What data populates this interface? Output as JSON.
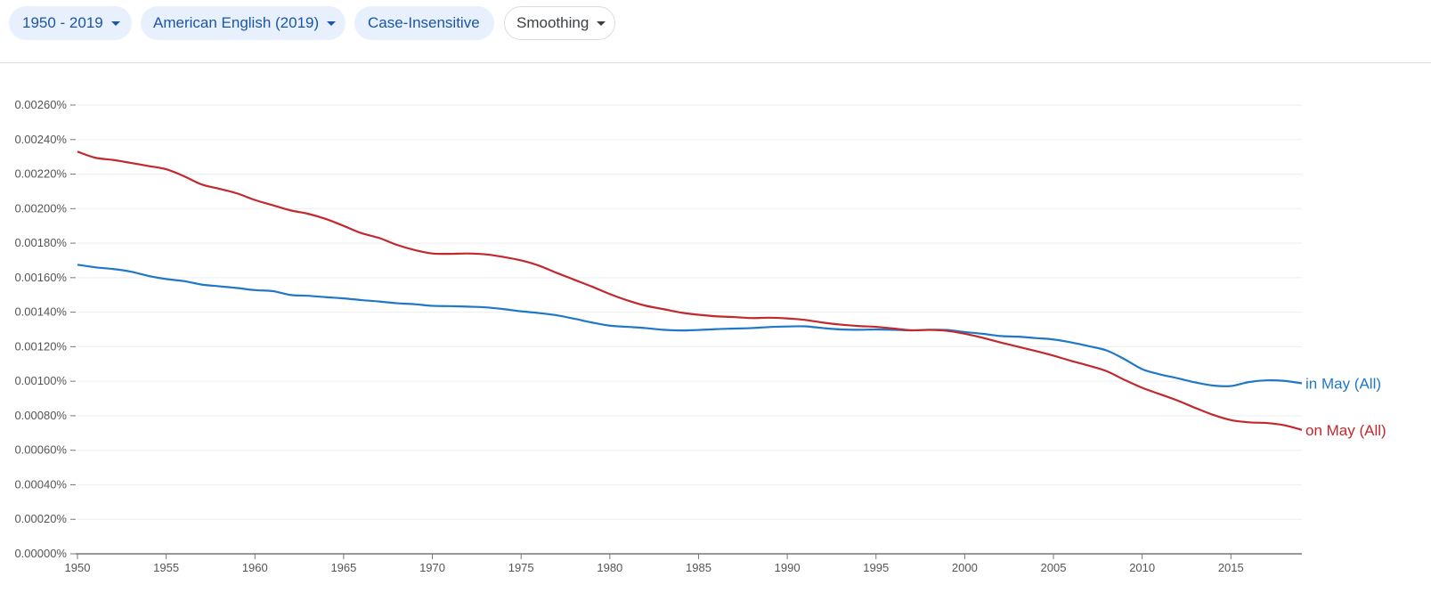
{
  "toolbar": {
    "range_label": "1950 - 2019",
    "corpus_label": "American English (2019)",
    "case_label": "Case-Insensitive",
    "smoothing_label": "Smoothing"
  },
  "colors": {
    "chip_fill": "#e8f0fe",
    "chip_text": "#1a56a5",
    "grid": "#eeeeee",
    "axis": "#777777"
  },
  "chart_data": {
    "type": "line",
    "title": "",
    "xlabel": "",
    "ylabel": "",
    "xlim": [
      1950,
      2019
    ],
    "ylim": [
      0,
      0.0026
    ],
    "grid": true,
    "legend": "inline labels at right end of each line",
    "x_ticks": [
      1950,
      1955,
      1960,
      1965,
      1970,
      1975,
      1980,
      1985,
      1990,
      1995,
      2000,
      2005,
      2010,
      2015
    ],
    "y_ticks": [
      "0.00000%",
      "0.00020%",
      "0.00040%",
      "0.00060%",
      "0.00080%",
      "0.00100%",
      "0.00120%",
      "0.00140%",
      "0.00160%",
      "0.00180%",
      "0.00200%",
      "0.00220%",
      "0.00240%",
      "0.00260%"
    ],
    "y_tick_values": [
      0,
      0.0002,
      0.0004,
      0.0006,
      0.0008,
      0.001,
      0.0012,
      0.0014,
      0.0016,
      0.0018,
      0.002,
      0.0022,
      0.0024,
      0.0026
    ],
    "series": [
      {
        "name": "in May (All)",
        "color": "#1f77c9",
        "points": [
          [
            1950,
            0.001675
          ],
          [
            1951,
            0.00166
          ],
          [
            1952,
            0.00165
          ],
          [
            1953,
            0.001635
          ],
          [
            1954,
            0.00161
          ],
          [
            1955,
            0.001592
          ],
          [
            1956,
            0.00158
          ],
          [
            1957,
            0.00156
          ],
          [
            1958,
            0.00155
          ],
          [
            1959,
            0.00154
          ],
          [
            1960,
            0.001528
          ],
          [
            1961,
            0.001522
          ],
          [
            1962,
            0.0015
          ],
          [
            1963,
            0.001495
          ],
          [
            1964,
            0.001487
          ],
          [
            1965,
            0.00148
          ],
          [
            1966,
            0.00147
          ],
          [
            1967,
            0.001462
          ],
          [
            1968,
            0.001452
          ],
          [
            1969,
            0.001446
          ],
          [
            1970,
            0.001437
          ],
          [
            1971,
            0.001435
          ],
          [
            1972,
            0.001432
          ],
          [
            1973,
            0.001428
          ],
          [
            1974,
            0.001418
          ],
          [
            1975,
            0.001405
          ],
          [
            1976,
            0.001395
          ],
          [
            1977,
            0.001382
          ],
          [
            1978,
            0.001362
          ],
          [
            1979,
            0.00134
          ],
          [
            1980,
            0.001322
          ],
          [
            1981,
            0.001315
          ],
          [
            1982,
            0.001308
          ],
          [
            1983,
            0.001298
          ],
          [
            1984,
            0.001294
          ],
          [
            1985,
            0.001297
          ],
          [
            1986,
            0.001302
          ],
          [
            1987,
            0.001305
          ],
          [
            1988,
            0.001308
          ],
          [
            1989,
            0.001314
          ],
          [
            1990,
            0.001317
          ],
          [
            1991,
            0.001318
          ],
          [
            1992,
            0.001308
          ],
          [
            1993,
            0.0013
          ],
          [
            1994,
            0.001298
          ],
          [
            1995,
            0.0013
          ],
          [
            1996,
            0.001298
          ],
          [
            1997,
            0.001295
          ],
          [
            1998,
            0.001298
          ],
          [
            1999,
            0.001297
          ],
          [
            2000,
            0.001285
          ],
          [
            2001,
            0.001275
          ],
          [
            2002,
            0.001262
          ],
          [
            2003,
            0.001258
          ],
          [
            2004,
            0.00125
          ],
          [
            2005,
            0.001242
          ],
          [
            2006,
            0.001225
          ],
          [
            2007,
            0.001203
          ],
          [
            2008,
            0.001178
          ],
          [
            2009,
            0.001128
          ],
          [
            2010,
            0.00107
          ],
          [
            2011,
            0.00104
          ],
          [
            2012,
            0.001017
          ],
          [
            2013,
            0.000993
          ],
          [
            2014,
            0.000975
          ],
          [
            2015,
            0.000972
          ],
          [
            2016,
            0.000995
          ],
          [
            2017,
            0.001005
          ],
          [
            2018,
            0.001002
          ],
          [
            2019,
            0.000988
          ]
        ]
      },
      {
        "name": "on May (All)",
        "color": "#c2282d",
        "points": [
          [
            1950,
            0.00233
          ],
          [
            1951,
            0.002295
          ],
          [
            1952,
            0.002282
          ],
          [
            1953,
            0.002265
          ],
          [
            1954,
            0.002247
          ],
          [
            1955,
            0.002228
          ],
          [
            1956,
            0.002188
          ],
          [
            1957,
            0.00214
          ],
          [
            1958,
            0.002115
          ],
          [
            1959,
            0.002088
          ],
          [
            1960,
            0.00205
          ],
          [
            1961,
            0.00202
          ],
          [
            1962,
            0.00199
          ],
          [
            1963,
            0.00197
          ],
          [
            1964,
            0.00194
          ],
          [
            1965,
            0.0019
          ],
          [
            1966,
            0.001858
          ],
          [
            1967,
            0.00183
          ],
          [
            1968,
            0.00179
          ],
          [
            1969,
            0.00176
          ],
          [
            1970,
            0.00174
          ],
          [
            1971,
            0.001738
          ],
          [
            1972,
            0.00174
          ],
          [
            1973,
            0.001735
          ],
          [
            1974,
            0.00172
          ],
          [
            1975,
            0.0017
          ],
          [
            1976,
            0.00167
          ],
          [
            1977,
            0.001628
          ],
          [
            1978,
            0.001588
          ],
          [
            1979,
            0.001548
          ],
          [
            1980,
            0.001505
          ],
          [
            1981,
            0.001468
          ],
          [
            1982,
            0.001438
          ],
          [
            1983,
            0.001418
          ],
          [
            1984,
            0.001398
          ],
          [
            1985,
            0.001385
          ],
          [
            1986,
            0.001376
          ],
          [
            1987,
            0.001372
          ],
          [
            1988,
            0.001366
          ],
          [
            1989,
            0.001368
          ],
          [
            1990,
            0.001364
          ],
          [
            1991,
            0.001355
          ],
          [
            1992,
            0.00134
          ],
          [
            1993,
            0.001328
          ],
          [
            1994,
            0.00132
          ],
          [
            1995,
            0.001315
          ],
          [
            1996,
            0.001305
          ],
          [
            1997,
            0.001295
          ],
          [
            1998,
            0.001297
          ],
          [
            1999,
            0.001292
          ],
          [
            2000,
            0.001275
          ],
          [
            2001,
            0.001252
          ],
          [
            2002,
            0.001225
          ],
          [
            2003,
            0.0012
          ],
          [
            2004,
            0.001175
          ],
          [
            2005,
            0.001148
          ],
          [
            2006,
            0.001118
          ],
          [
            2007,
            0.00109
          ],
          [
            2008,
            0.001058
          ],
          [
            2009,
            0.001008
          ],
          [
            2010,
            0.000962
          ],
          [
            2011,
            0.000925
          ],
          [
            2012,
            0.000888
          ],
          [
            2013,
            0.000845
          ],
          [
            2014,
            0.000805
          ],
          [
            2015,
            0.000775
          ],
          [
            2016,
            0.000762
          ],
          [
            2017,
            0.000758
          ],
          [
            2018,
            0.000745
          ],
          [
            2019,
            0.000718
          ]
        ]
      }
    ]
  }
}
